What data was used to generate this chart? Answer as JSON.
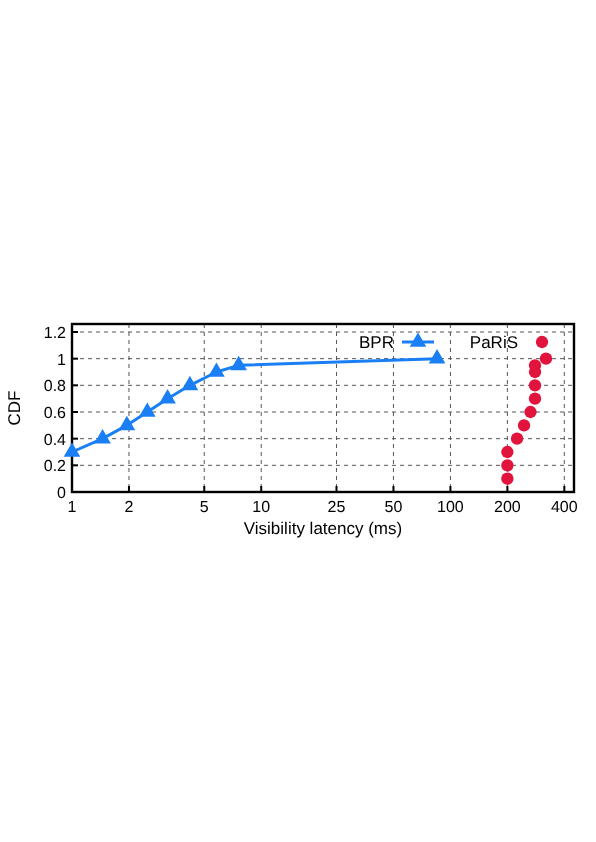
{
  "chart_data": {
    "type": "line",
    "xlabel": "Visibility latency (ms)",
    "ylabel": "CDF",
    "log": "x",
    "xlim": [
      1,
      450
    ],
    "xticks": [
      1,
      2,
      5,
      10,
      25,
      50,
      100,
      200,
      400
    ],
    "ylim": [
      0,
      1.26
    ],
    "yticks": [
      0,
      0.2,
      0.4,
      0.6,
      0.8,
      1,
      1.2
    ],
    "grid": true,
    "legend": "top right",
    "line_style": "solid",
    "series": [
      {
        "name": "BPR",
        "type": "line",
        "marker": "triangle",
        "color": "#1a7ff5",
        "x": [
          1,
          1.45,
          1.95,
          2.5,
          3.2,
          4.2,
          5.8,
          7.6,
          85
        ],
        "values": [
          0.3,
          0.4,
          0.5,
          0.6,
          0.7,
          0.8,
          0.9,
          0.95,
          1
        ]
      },
      {
        "name": "PaRiS",
        "type": "scatter",
        "marker": "circle",
        "color": "#e0143c",
        "x": [
          200,
          200,
          200,
          225,
          245,
          265,
          280,
          280,
          280,
          280,
          320
        ],
        "values": [
          0.1,
          0.2,
          0.3,
          0.4,
          0.5,
          0.6,
          0.7,
          0.8,
          0.9,
          0.95,
          1
        ]
      }
    ]
  }
}
